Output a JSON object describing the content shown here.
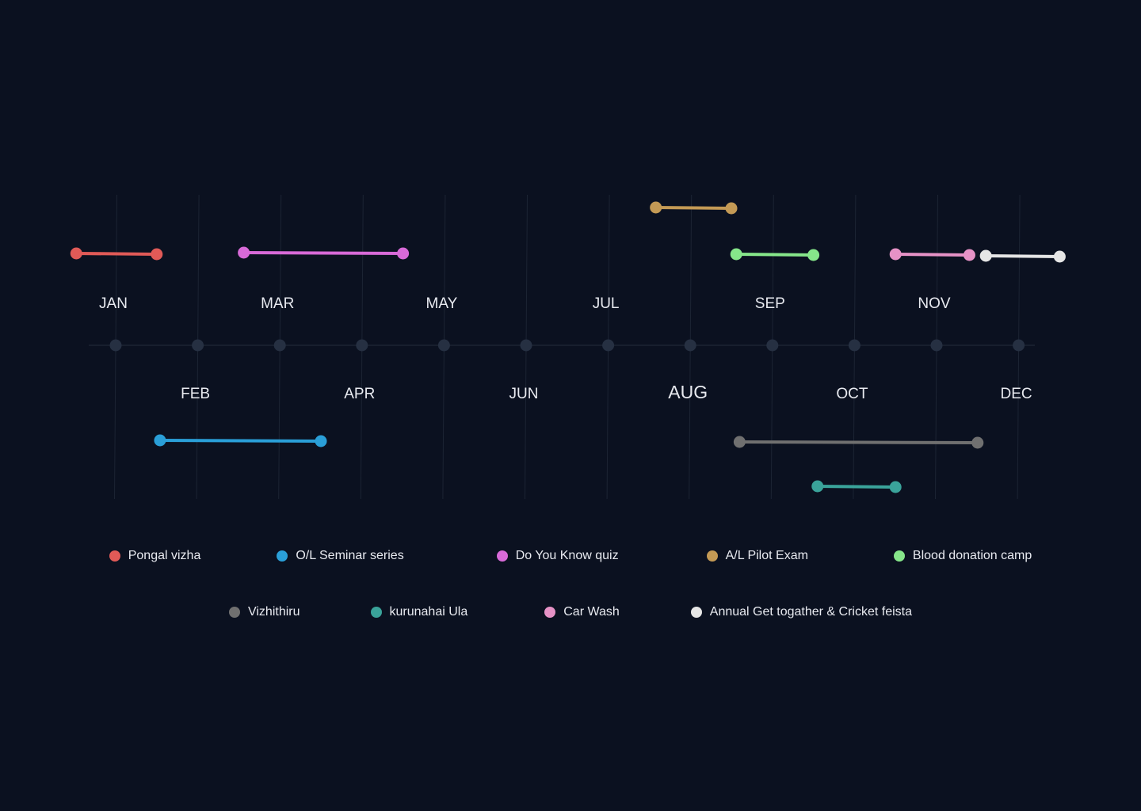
{
  "chart_data": {
    "type": "timeline",
    "months": [
      "JAN",
      "FEB",
      "MAR",
      "APR",
      "MAY",
      "JUN",
      "JUL",
      "AUG",
      "SEP",
      "OCT",
      "NOV",
      "DEC"
    ],
    "current_month": "AUG",
    "grid": true,
    "legend_position": "bottom",
    "events": [
      {
        "name": "Pongal vizha",
        "color": "#e05a57",
        "start": 0.52,
        "end": 1.5,
        "side": "above"
      },
      {
        "name": "O/L Seminar series",
        "color": "#2a9fd8",
        "start": 1.54,
        "end": 3.5,
        "side": "below"
      },
      {
        "name": "Do You Know quiz",
        "color": "#d86ad8",
        "start": 2.56,
        "end": 4.5,
        "side": "above"
      },
      {
        "name": "A/L Pilot Exam",
        "color": "#c49a55",
        "start": 7.58,
        "end": 8.5,
        "side": "above"
      },
      {
        "name": "Blood donation camp",
        "color": "#86e68a",
        "start": 8.56,
        "end": 9.5,
        "side": "above"
      },
      {
        "name": "Vizhithiru",
        "color": "#707070",
        "start": 8.6,
        "end": 11.5,
        "side": "below"
      },
      {
        "name": "kurunahai Ula",
        "color": "#3aa39a",
        "start": 9.55,
        "end": 10.5,
        "side": "below"
      },
      {
        "name": "Car Wash",
        "color": "#e692c6",
        "start": 10.5,
        "end": 11.4,
        "side": "above"
      },
      {
        "name": "Annual Get togather & Cricket feista",
        "color": "#e6e6e6",
        "start": 11.6,
        "end": 12.5,
        "side": "above"
      }
    ]
  },
  "legend": {
    "row1": [
      {
        "label": "Pongal vizha",
        "color": "#e05a57"
      },
      {
        "label": "O/L Seminar series",
        "color": "#2a9fd8"
      },
      {
        "label": "Do You Know quiz",
        "color": "#d86ad8"
      },
      {
        "label": "A/L Pilot Exam",
        "color": "#c49a55"
      },
      {
        "label": "Blood donation camp",
        "color": "#86e68a"
      }
    ],
    "row2": [
      {
        "label": "Vizhithiru",
        "color": "#707070"
      },
      {
        "label": "kurunahai Ula",
        "color": "#3aa39a"
      },
      {
        "label": "Car Wash",
        "color": "#e692c6"
      },
      {
        "label": "Annual Get togather & Cricket feista",
        "color": "#e6e6e6"
      }
    ]
  },
  "colors": {
    "background": "#0b1120",
    "grid": "#1c2433",
    "axis_node": "#263042",
    "text": "#e8eaf0"
  }
}
